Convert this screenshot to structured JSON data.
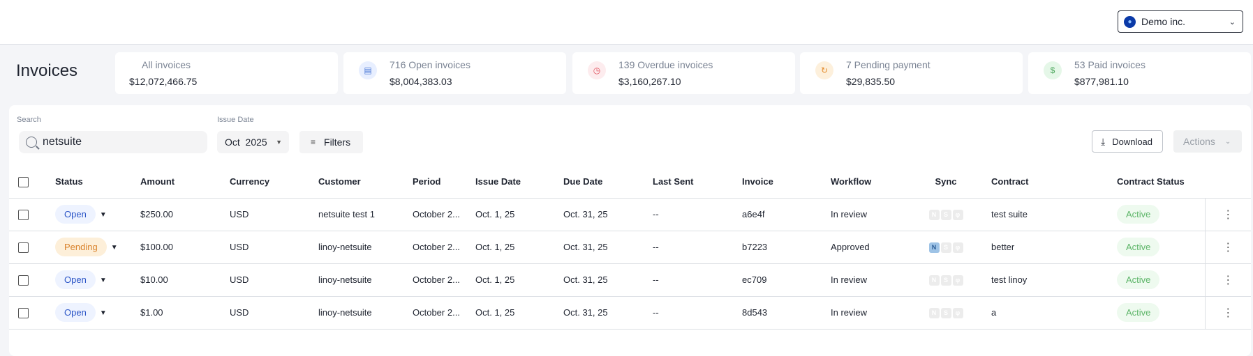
{
  "org": {
    "name": "Demo inc."
  },
  "page": {
    "title": "Invoices"
  },
  "summary": [
    {
      "label": "All invoices",
      "value": "$12,072,466.75",
      "icon": "none"
    },
    {
      "label": "716 Open invoices",
      "value": "$8,004,383.03",
      "icon": "document-icon",
      "color": "#4a78d6",
      "bg": "#e8efff"
    },
    {
      "label": "139 Overdue invoices",
      "value": "$3,160,267.10",
      "icon": "clock-icon",
      "color": "#e0505c",
      "bg": "#fdecee"
    },
    {
      "label": "7 Pending payment",
      "value": "$29,835.50",
      "icon": "refresh-icon",
      "color": "#e38a2a",
      "bg": "#fdf0dc"
    },
    {
      "label": "53 Paid invoices",
      "value": "$877,981.10",
      "icon": "dollar-icon",
      "color": "#4aa55a",
      "bg": "#e5f7e8"
    }
  ],
  "filters": {
    "search_label": "Search",
    "search_value": "netsuite",
    "date_label": "Issue Date",
    "date_value": "Oct  2025",
    "filters_label": "Filters",
    "download_label": "Download",
    "actions_label": "Actions"
  },
  "table": {
    "columns": [
      "Status",
      "Amount",
      "Currency",
      "Customer",
      "Period",
      "Issue Date",
      "Due Date",
      "Last Sent",
      "Invoice",
      "Workflow",
      "Sync",
      "Contract",
      "Contract Status"
    ],
    "rows": [
      {
        "status": "Open",
        "amount": "$250.00",
        "currency": "USD",
        "customer": "netsuite test 1",
        "period": "October 2...",
        "issue": "Oct. 1, 25",
        "due": "Oct. 31, 25",
        "sent": "--",
        "invoice": "a6e4f",
        "workflow": "In review",
        "sync_netsuite": false,
        "contract": "test suite",
        "cstatus": "Active"
      },
      {
        "status": "Pending",
        "amount": "$100.00",
        "currency": "USD",
        "customer": "linoy-netsuite",
        "period": "October 2...",
        "issue": "Oct. 1, 25",
        "due": "Oct. 31, 25",
        "sent": "--",
        "invoice": "b7223",
        "workflow": "Approved",
        "sync_netsuite": true,
        "contract": "better",
        "cstatus": "Active"
      },
      {
        "status": "Open",
        "amount": "$10.00",
        "currency": "USD",
        "customer": "linoy-netsuite",
        "period": "October 2...",
        "issue": "Oct. 1, 25",
        "due": "Oct. 31, 25",
        "sent": "--",
        "invoice": "ec709",
        "workflow": "In review",
        "sync_netsuite": false,
        "contract": "test linoy",
        "cstatus": "Active"
      },
      {
        "status": "Open",
        "amount": "$1.00",
        "currency": "USD",
        "customer": "linoy-netsuite",
        "period": "October 2...",
        "issue": "Oct. 1, 25",
        "due": "Oct. 31, 25",
        "sent": "--",
        "invoice": "8d543",
        "workflow": "In review",
        "sync_netsuite": false,
        "contract": "a",
        "cstatus": "Active"
      }
    ]
  }
}
